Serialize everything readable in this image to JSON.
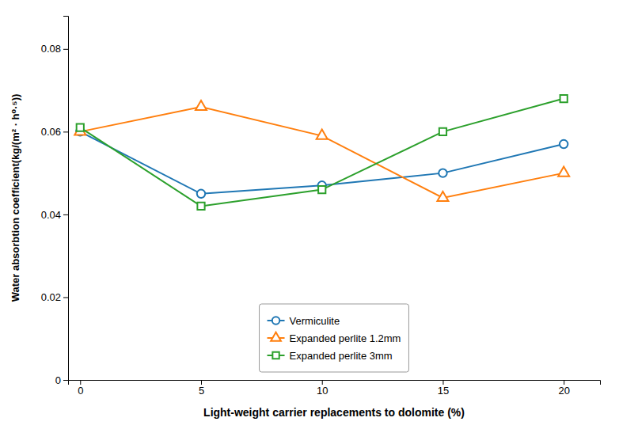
{
  "chart_data": {
    "type": "line",
    "x_label": "Light-weight carrier replacements to dolomite (%)",
    "y_label": "Water absorbtion coefficient(kg/(m² · h⁰·⁵))",
    "x": [
      0,
      5,
      10,
      15,
      20
    ],
    "series": [
      {
        "name": "Vermiculite",
        "marker": "circle",
        "values": [
          0.06,
          0.045,
          0.047,
          0.05,
          0.057
        ]
      },
      {
        "name": "Expanded perlite 1.2mm",
        "marker": "triangle",
        "values": [
          0.06,
          0.066,
          0.059,
          0.044,
          0.05
        ]
      },
      {
        "name": "Expanded perlite 3mm",
        "marker": "square",
        "values": [
          0.061,
          0.042,
          0.046,
          0.06,
          0.068
        ]
      }
    ],
    "xlim": [
      -0.5,
      21.5
    ],
    "ylim": [
      0,
      0.088
    ],
    "xticks": [
      0,
      5,
      10,
      15,
      20
    ],
    "yticks": [
      0,
      0.02,
      0.04,
      0.06,
      0.08
    ],
    "grid": false,
    "legend": "bottom"
  }
}
